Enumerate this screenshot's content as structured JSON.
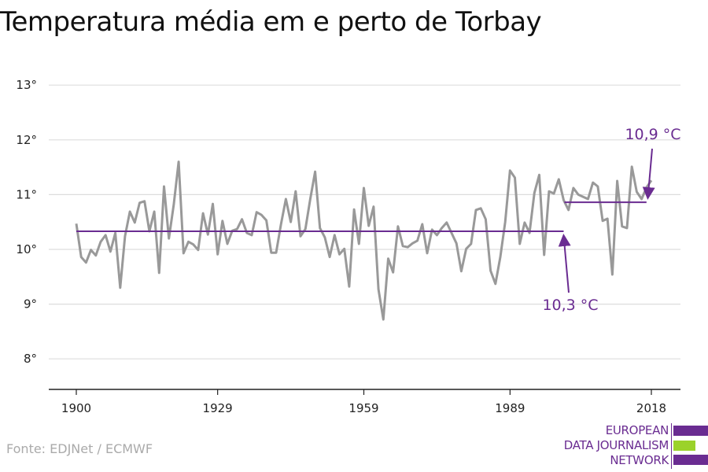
{
  "title": "Temperatura média em e perto de Torbay",
  "source": "Fonte: EDJNet / ECMWF",
  "logo": {
    "lines": [
      "EUROPEAN",
      "DATA JOURNALISM",
      "NETWORK"
    ],
    "colors": {
      "purple": "#6a2c91",
      "green": "#9bd22a"
    }
  },
  "colors": {
    "line": "#999999",
    "average": "#6a2c91",
    "grid": "#dddddd"
  },
  "chart_data": {
    "type": "line",
    "title": "Temperatura média em e perto de Torbay",
    "xlabel": "",
    "ylabel": "",
    "xlim": [
      1900,
      2018
    ],
    "ylim": [
      7.5,
      13.3
    ],
    "xticks": [
      1900,
      1929,
      1959,
      1989,
      2018
    ],
    "xtick_labels": [
      "1900",
      "1929",
      "1959",
      "1989",
      "2018"
    ],
    "yticks": [
      8,
      9,
      10,
      11,
      12,
      13
    ],
    "ytick_labels": [
      "8°",
      "9°",
      "10°",
      "11°",
      "12°",
      "13°"
    ],
    "grid": true,
    "x_start": 1900,
    "values": [
      10.47,
      9.86,
      9.76,
      9.99,
      9.89,
      10.14,
      10.26,
      9.96,
      10.3,
      9.3,
      10.24,
      10.69,
      10.49,
      10.85,
      10.88,
      10.33,
      10.69,
      9.57,
      11.15,
      10.2,
      10.82,
      11.6,
      9.93,
      10.14,
      10.09,
      9.99,
      10.66,
      10.27,
      10.83,
      9.91,
      10.52,
      10.1,
      10.34,
      10.37,
      10.55,
      10.3,
      10.26,
      10.68,
      10.63,
      10.53,
      9.94,
      9.94,
      10.46,
      10.92,
      10.5,
      11.06,
      10.24,
      10.37,
      10.92,
      11.42,
      10.39,
      10.22,
      9.86,
      10.26,
      9.91,
      10.01,
      9.32,
      10.73,
      10.1,
      11.12,
      10.43,
      10.78,
      9.27,
      8.72,
      9.83,
      9.58,
      10.42,
      10.06,
      10.04,
      10.11,
      10.16,
      10.46,
      9.93,
      10.36,
      10.26,
      10.39,
      10.49,
      10.3,
      10.11,
      9.6,
      10.01,
      10.1,
      10.72,
      10.75,
      10.55,
      9.61,
      9.37,
      9.86,
      10.5,
      11.44,
      11.31,
      10.1,
      10.49,
      10.3,
      11.03,
      11.36,
      9.9,
      11.06,
      11.02,
      11.28,
      10.9,
      10.72,
      11.12,
      11.0,
      10.96,
      10.92,
      11.22,
      11.15,
      10.52,
      10.56,
      9.54,
      11.25,
      10.42,
      10.39,
      11.51,
      11.05,
      10.92,
      11.13,
      11.26
    ],
    "averages": [
      {
        "label": "10,3 °C",
        "value": 10.33,
        "from": 1900,
        "to": 2000
      },
      {
        "label": "10,9 °C",
        "value": 10.86,
        "from": 2000,
        "to": 2017
      }
    ]
  }
}
